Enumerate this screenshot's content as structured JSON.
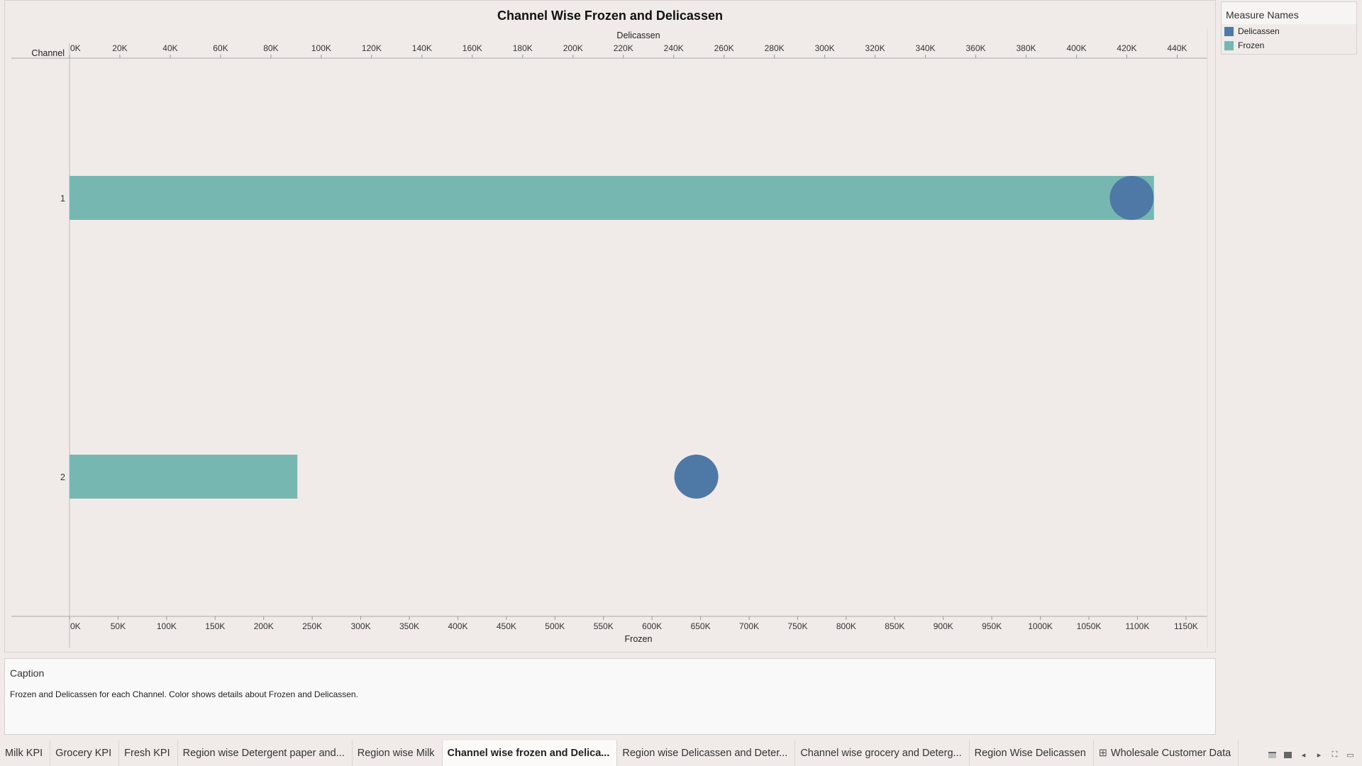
{
  "chart_data": {
    "type": "bar",
    "title": "Channel Wise Frozen and Delicassen",
    "row_header": "Channel",
    "categories": [
      "1",
      "2"
    ],
    "series": [
      {
        "name": "Frozen",
        "axis": "bottom",
        "mark": "bar",
        "values": [
          1116979,
          234671
        ]
      },
      {
        "name": "Delicassen",
        "axis": "top",
        "mark": "circle",
        "values": [
          421955,
          248988
        ]
      }
    ],
    "top_axis": {
      "label": "Delicassen",
      "range": [
        0,
        452000
      ],
      "ticks": [
        0,
        20000,
        40000,
        60000,
        80000,
        100000,
        120000,
        140000,
        160000,
        180000,
        200000,
        220000,
        240000,
        260000,
        280000,
        300000,
        320000,
        340000,
        360000,
        380000,
        400000,
        420000,
        440000
      ],
      "tick_labels": [
        "0K",
        "20K",
        "40K",
        "60K",
        "80K",
        "100K",
        "120K",
        "140K",
        "160K",
        "180K",
        "200K",
        "220K",
        "240K",
        "260K",
        "280K",
        "300K",
        "320K",
        "340K",
        "360K",
        "380K",
        "400K",
        "420K",
        "440K"
      ]
    },
    "bottom_axis": {
      "label": "Frozen",
      "range": [
        0,
        1172000
      ],
      "ticks": [
        0,
        50000,
        100000,
        150000,
        200000,
        250000,
        300000,
        350000,
        400000,
        450000,
        500000,
        550000,
        600000,
        650000,
        700000,
        750000,
        800000,
        850000,
        900000,
        950000,
        1000000,
        1050000,
        1100000,
        1150000
      ],
      "tick_labels": [
        "0K",
        "50K",
        "100K",
        "150K",
        "200K",
        "250K",
        "300K",
        "350K",
        "400K",
        "450K",
        "500K",
        "550K",
        "600K",
        "650K",
        "700K",
        "750K",
        "800K",
        "850K",
        "900K",
        "950K",
        "1000K",
        "1050K",
        "1100K",
        "1150K"
      ]
    },
    "grid": false,
    "legend_position": "top-right"
  },
  "colors": {
    "Frozen": "#76b7b2",
    "Delicassen": "#4e79a7"
  },
  "legend": {
    "title": "Measure Names",
    "items": [
      {
        "label": "Delicassen",
        "color": "#4e79a7"
      },
      {
        "label": "Frozen",
        "color": "#76b7b2"
      }
    ]
  },
  "caption": {
    "title": "Caption",
    "text": "Frozen and Delicassen for each Channel.  Color shows details about Frozen and Delicassen."
  },
  "tabs": [
    {
      "label": "Milk KPI",
      "active": false
    },
    {
      "label": "Grocery KPI",
      "active": false
    },
    {
      "label": "Fresh KPI",
      "active": false
    },
    {
      "label": "Region wise Detergent paper and...",
      "active": false
    },
    {
      "label": "Region wise Milk",
      "active": false
    },
    {
      "label": "Channel wise frozen and Delica...",
      "active": true
    },
    {
      "label": "Region wise Delicassen and Deter...",
      "active": false
    },
    {
      "label": "Channel wise grocery and Deterg...",
      "active": false
    },
    {
      "label": "Region Wise Delicassen",
      "active": false
    },
    {
      "label": "Wholesale Customer Data",
      "active": false,
      "icon": "grid-icon"
    }
  ],
  "nav_controls": [
    "filmstrip-icon",
    "grid-view-icon",
    "prev-sheet-icon",
    "next-sheet-icon",
    "fullscreen-icon",
    "presentation-icon"
  ]
}
